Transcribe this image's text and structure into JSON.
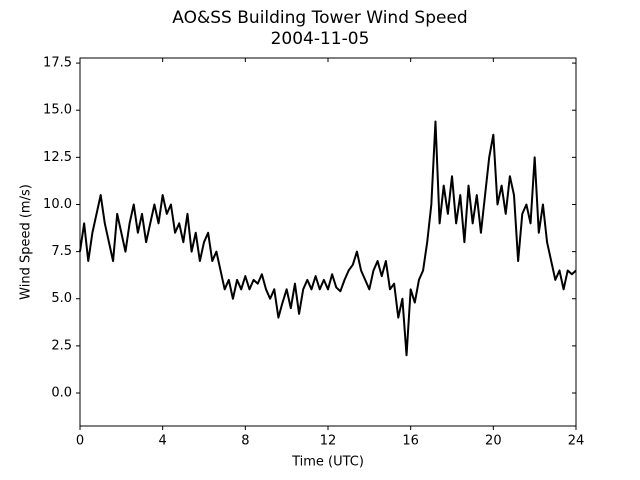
{
  "chart_data": {
    "type": "line",
    "title": "AO&SS Building Tower Wind Speed",
    "subtitle": "2004-11-05",
    "xlabel": "Time (UTC)",
    "ylabel": "Wind Speed (m/s)",
    "xlim": [
      0,
      24
    ],
    "xticks": [
      0,
      4,
      8,
      12,
      16,
      20,
      24
    ],
    "ylim": [
      -1.75,
      17.77
    ],
    "yticks": [
      {
        "value": 0,
        "label": "0.0"
      },
      2.5,
      {
        "value": 5,
        "label": "5.0"
      },
      7.5,
      {
        "value": 10,
        "label": "10.0"
      },
      12.5,
      {
        "value": 15,
        "label": "15.0"
      },
      17.5
    ],
    "grid": false,
    "x": [
      0,
      0.2,
      0.4,
      0.6,
      0.8,
      1,
      1.2,
      1.4,
      1.6,
      1.8,
      2,
      2.2,
      2.4,
      2.6,
      2.8,
      3,
      3.2,
      3.4,
      3.6,
      3.8,
      4,
      4.2,
      4.4,
      4.6,
      4.8,
      5,
      5.2,
      5.4,
      5.6,
      5.8,
      6,
      6.2,
      6.4,
      6.6,
      6.8,
      7,
      7.2,
      7.4,
      7.6,
      7.8,
      8,
      8.2,
      8.4,
      8.6,
      8.8,
      9,
      9.2,
      9.4,
      9.6,
      9.8,
      10,
      10.2,
      10.4,
      10.6,
      10.8,
      11,
      11.2,
      11.4,
      11.6,
      11.8,
      12,
      12.2,
      12.4,
      12.6,
      12.8,
      13,
      13.2,
      13.4,
      13.6,
      13.8,
      14,
      14.2,
      14.4,
      14.6,
      14.8,
      15,
      15.2,
      15.4,
      15.6,
      15.8,
      16,
      16.2,
      16.4,
      16.6,
      16.8,
      17,
      17.2,
      17.4,
      17.6,
      17.8,
      18,
      18.2,
      18.4,
      18.6,
      18.8,
      19,
      19.2,
      19.4,
      19.6,
      19.8,
      20,
      20.2,
      20.4,
      20.6,
      20.8,
      21,
      21.2,
      21.4,
      21.6,
      21.8,
      22,
      22.2,
      22.4,
      22.6,
      22.8,
      23,
      23.2,
      23.4,
      23.6,
      23.8,
      24
    ],
    "series": [
      {
        "color": "#000000",
        "values": [
          7.5,
          9.0,
          7.0,
          8.5,
          9.5,
          10.5,
          9.0,
          8.0,
          7.0,
          9.5,
          8.5,
          7.5,
          9.0,
          10.0,
          8.5,
          9.5,
          8.0,
          9.0,
          10.0,
          9.0,
          10.5,
          9.5,
          10.0,
          8.5,
          9.0,
          8.0,
          9.5,
          7.5,
          8.5,
          7.0,
          8.0,
          8.5,
          7.0,
          7.5,
          6.5,
          5.5,
          6.0,
          5.0,
          6.0,
          5.5,
          6.2,
          5.5,
          6.0,
          5.8,
          6.3,
          5.5,
          5.0,
          5.5,
          4.0,
          4.8,
          5.5,
          4.5,
          5.8,
          4.2,
          5.5,
          6.0,
          5.5,
          6.2,
          5.5,
          6.0,
          5.5,
          6.3,
          5.6,
          5.4,
          6.0,
          6.5,
          6.8,
          7.5,
          6.5,
          6.0,
          5.5,
          6.5,
          7.0,
          6.2,
          7.0,
          5.5,
          5.8,
          4.0,
          5.0,
          2.0,
          5.5,
          4.8,
          6.0,
          6.5,
          8.0,
          10.0,
          14.4,
          9.0,
          11.0,
          9.5,
          11.5,
          9.0,
          10.5,
          8.0,
          11.0,
          9.0,
          10.5,
          8.5,
          10.5,
          12.5,
          13.7,
          10.0,
          11.0,
          9.5,
          11.5,
          10.5,
          7.0,
          9.5,
          10.0,
          9.0,
          12.5,
          8.5,
          10.0,
          8.0,
          7.0,
          6.0,
          6.5,
          5.5,
          6.5,
          6.3,
          6.5
        ]
      }
    ]
  }
}
